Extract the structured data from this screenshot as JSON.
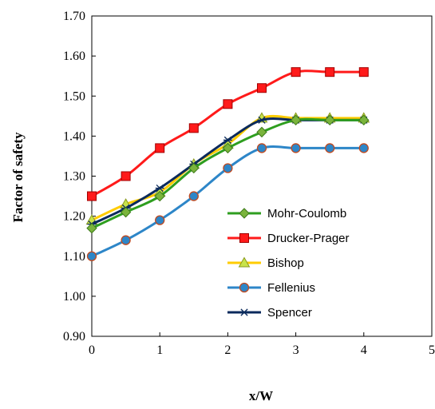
{
  "chart_data": {
    "type": "line",
    "xlabel": "x/W",
    "ylabel": "Factor of safety",
    "xlim": [
      0,
      5
    ],
    "ylim": [
      0.9,
      1.7
    ],
    "x_ticks": [
      "0",
      "1",
      "2",
      "3",
      "4",
      "5"
    ],
    "y_ticks": [
      "0.90",
      "1.00",
      "1.10",
      "1.20",
      "1.30",
      "1.40",
      "1.50",
      "1.60",
      "1.70"
    ],
    "grid": false,
    "legend_position": "bottom-right inside",
    "x": [
      0,
      0.5,
      1,
      1.5,
      2,
      2.5,
      3,
      3.5,
      4
    ],
    "series": [
      {
        "name": "Mohr-Coulomb",
        "color": "#2e9e1f",
        "marker": "diamond-green",
        "values": [
          1.17,
          1.21,
          1.25,
          1.32,
          1.37,
          1.41,
          1.44,
          1.44,
          1.44
        ]
      },
      {
        "name": "Drucker-Prager",
        "color": "#ff1a1a",
        "marker": "square-red",
        "values": [
          1.25,
          1.3,
          1.37,
          1.42,
          1.48,
          1.52,
          1.56,
          1.56,
          1.56
        ]
      },
      {
        "name": "Bishop",
        "color": "#ffcc00",
        "marker": "triangle-yellow",
        "values": [
          1.19,
          1.23,
          1.26,
          1.33,
          1.38,
          1.445,
          1.445,
          1.445,
          1.445
        ]
      },
      {
        "name": "Fellenius",
        "color": "#2d86c8",
        "marker": "circle-blue",
        "values": [
          1.1,
          1.14,
          1.19,
          1.25,
          1.32,
          1.37,
          1.37,
          1.37,
          1.37
        ]
      },
      {
        "name": "Spencer",
        "color": "#0b2a5c",
        "marker": "star-navy",
        "values": [
          1.18,
          1.22,
          1.27,
          1.33,
          1.39,
          1.44,
          1.44,
          1.44,
          1.44
        ]
      }
    ]
  }
}
